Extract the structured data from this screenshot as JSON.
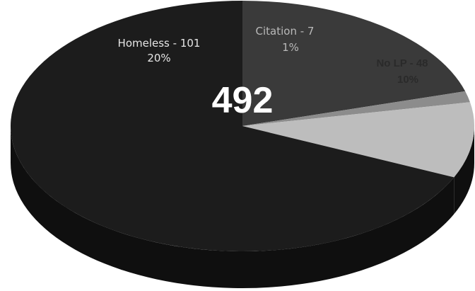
{
  "chart_data": {
    "type": "pie",
    "title": "",
    "total_label": "492",
    "slices": [
      {
        "category": "Homeless",
        "value": 101,
        "percent": "20%",
        "label_line1": "Homeless - 101",
        "label_line2": "20%",
        "color": "#3a3a3a"
      },
      {
        "category": "Citation",
        "value": 7,
        "percent": "1%",
        "label_line1": "Citation - 7",
        "label_line2": "1%",
        "color": "#8c8c8c"
      },
      {
        "category": "No LP",
        "value": 48,
        "percent": "10%",
        "label_line1": "No LP - 48",
        "label_line2": "10%",
        "color": "#bdbdbd"
      },
      {
        "category": "",
        "value": 336,
        "percent": "",
        "label_line1": "",
        "label_line2": "",
        "color": "#1c1c1c"
      }
    ]
  }
}
